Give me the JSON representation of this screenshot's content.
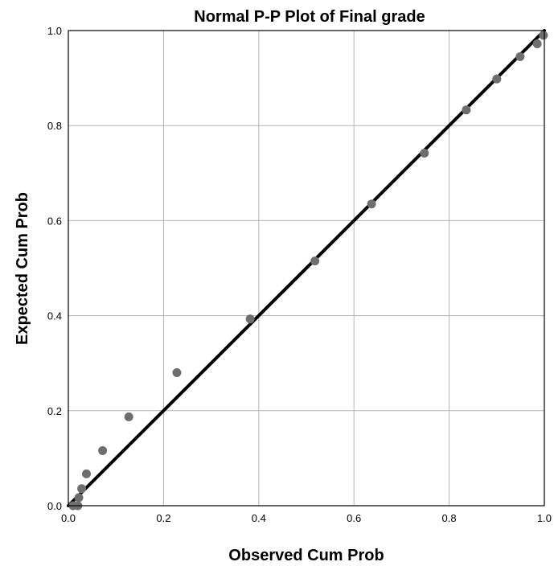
{
  "chart_data": {
    "type": "scatter",
    "title": "Normal P-P Plot of Final grade",
    "xlabel": "Observed Cum Prob",
    "ylabel": "Expected Cum Prob",
    "xlim": [
      0,
      1
    ],
    "ylim": [
      0,
      1
    ],
    "xticks": [
      "0.0",
      "0.2",
      "0.4",
      "0.6",
      "0.8",
      "1.0"
    ],
    "yticks": [
      "0.0",
      "0.2",
      "0.4",
      "0.6",
      "0.8",
      "1.0"
    ],
    "grid": true,
    "reference_line": {
      "from": [
        0,
        0
      ],
      "to": [
        1,
        1
      ],
      "color": "#000000"
    },
    "point_color": "#6e6e6e",
    "points": [
      {
        "x": 0.01,
        "y": 0.0
      },
      {
        "x": 0.02,
        "y": 0.0
      },
      {
        "x": 0.022,
        "y": 0.017
      },
      {
        "x": 0.028,
        "y": 0.036
      },
      {
        "x": 0.038,
        "y": 0.067
      },
      {
        "x": 0.072,
        "y": 0.116
      },
      {
        "x": 0.127,
        "y": 0.187
      },
      {
        "x": 0.228,
        "y": 0.28
      },
      {
        "x": 0.382,
        "y": 0.393
      },
      {
        "x": 0.518,
        "y": 0.515
      },
      {
        "x": 0.637,
        "y": 0.635
      },
      {
        "x": 0.748,
        "y": 0.742
      },
      {
        "x": 0.836,
        "y": 0.833
      },
      {
        "x": 0.9,
        "y": 0.898
      },
      {
        "x": 0.949,
        "y": 0.945
      },
      {
        "x": 0.985,
        "y": 0.972
      },
      {
        "x": 0.998,
        "y": 0.99
      }
    ]
  }
}
